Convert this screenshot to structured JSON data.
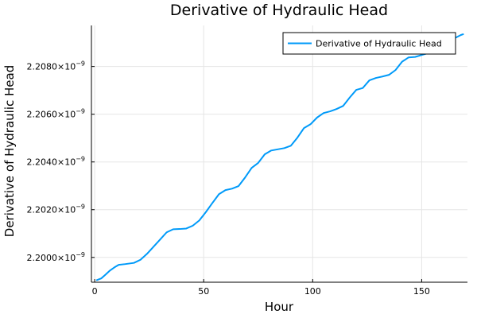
{
  "chart_data": {
    "type": "line",
    "title": "Derivative of Hydraulic Head",
    "xlabel": "Hour",
    "ylabel": "Derivative of Hydraulic Head",
    "xlim": [
      -1.5,
      171
    ],
    "ylim": [
      2.19896e-09,
      2.20972e-09
    ],
    "x_ticks": [
      0,
      50,
      100,
      150
    ],
    "x_tick_labels": [
      "0",
      "50",
      "100",
      "150"
    ],
    "y_ticks": [
      2.2e-09,
      2.202e-09,
      2.204e-09,
      2.206e-09,
      2.208e-09
    ],
    "y_tick_labels": [
      {
        "mantissa": "2.2000",
        "exp": "−9"
      },
      {
        "mantissa": "2.2020",
        "exp": "−9"
      },
      {
        "mantissa": "2.2040",
        "exp": "−9"
      },
      {
        "mantissa": "2.2060",
        "exp": "−9"
      },
      {
        "mantissa": "2.2080",
        "exp": "−9"
      }
    ],
    "grid": true,
    "legend_position": "top-right",
    "series": [
      {
        "name": "Derivative of Hydraulic Head",
        "color": "#009af9",
        "x": [
          1,
          3,
          5,
          7,
          9,
          11,
          14,
          18,
          21,
          24,
          27,
          30,
          33,
          36,
          39,
          42,
          45,
          48,
          51,
          54,
          57,
          60,
          63,
          66,
          69,
          72,
          75,
          78,
          81,
          84,
          87,
          90,
          93,
          96,
          99,
          102,
          105,
          108,
          111,
          114,
          117,
          120,
          123,
          126,
          129,
          132,
          135,
          138,
          141,
          144,
          147,
          150,
          153,
          156,
          159,
          162,
          165,
          168,
          169
        ],
        "y": [
          2.19905e-09,
          2.19912e-09,
          2.19928e-09,
          2.19945e-09,
          2.19958e-09,
          2.19969e-09,
          2.19972e-09,
          2.19977e-09,
          2.1999e-09,
          2.20015e-09,
          2.20045e-09,
          2.20075e-09,
          2.20105e-09,
          2.20118e-09,
          2.20119e-09,
          2.20121e-09,
          2.20133e-09,
          2.20155e-09,
          2.2019e-09,
          2.20228e-09,
          2.20265e-09,
          2.20282e-09,
          2.20288e-09,
          2.20299e-09,
          2.20335e-09,
          2.20375e-09,
          2.20396e-09,
          2.20432e-09,
          2.20448e-09,
          2.20453e-09,
          2.20458e-09,
          2.20468e-09,
          2.20502e-09,
          2.20542e-09,
          2.20558e-09,
          2.20586e-09,
          2.20605e-09,
          2.20612e-09,
          2.20622e-09,
          2.20635e-09,
          2.2067e-09,
          2.20702e-09,
          2.2071e-09,
          2.20742e-09,
          2.20752e-09,
          2.20758e-09,
          2.20765e-09,
          2.20785e-09,
          2.2082e-09,
          2.20838e-09,
          2.2084e-09,
          2.20848e-09,
          2.20856e-09,
          2.20866e-09,
          2.20883e-09,
          2.20902e-09,
          2.20918e-09,
          2.20932e-09,
          2.20935e-09
        ]
      }
    ]
  }
}
